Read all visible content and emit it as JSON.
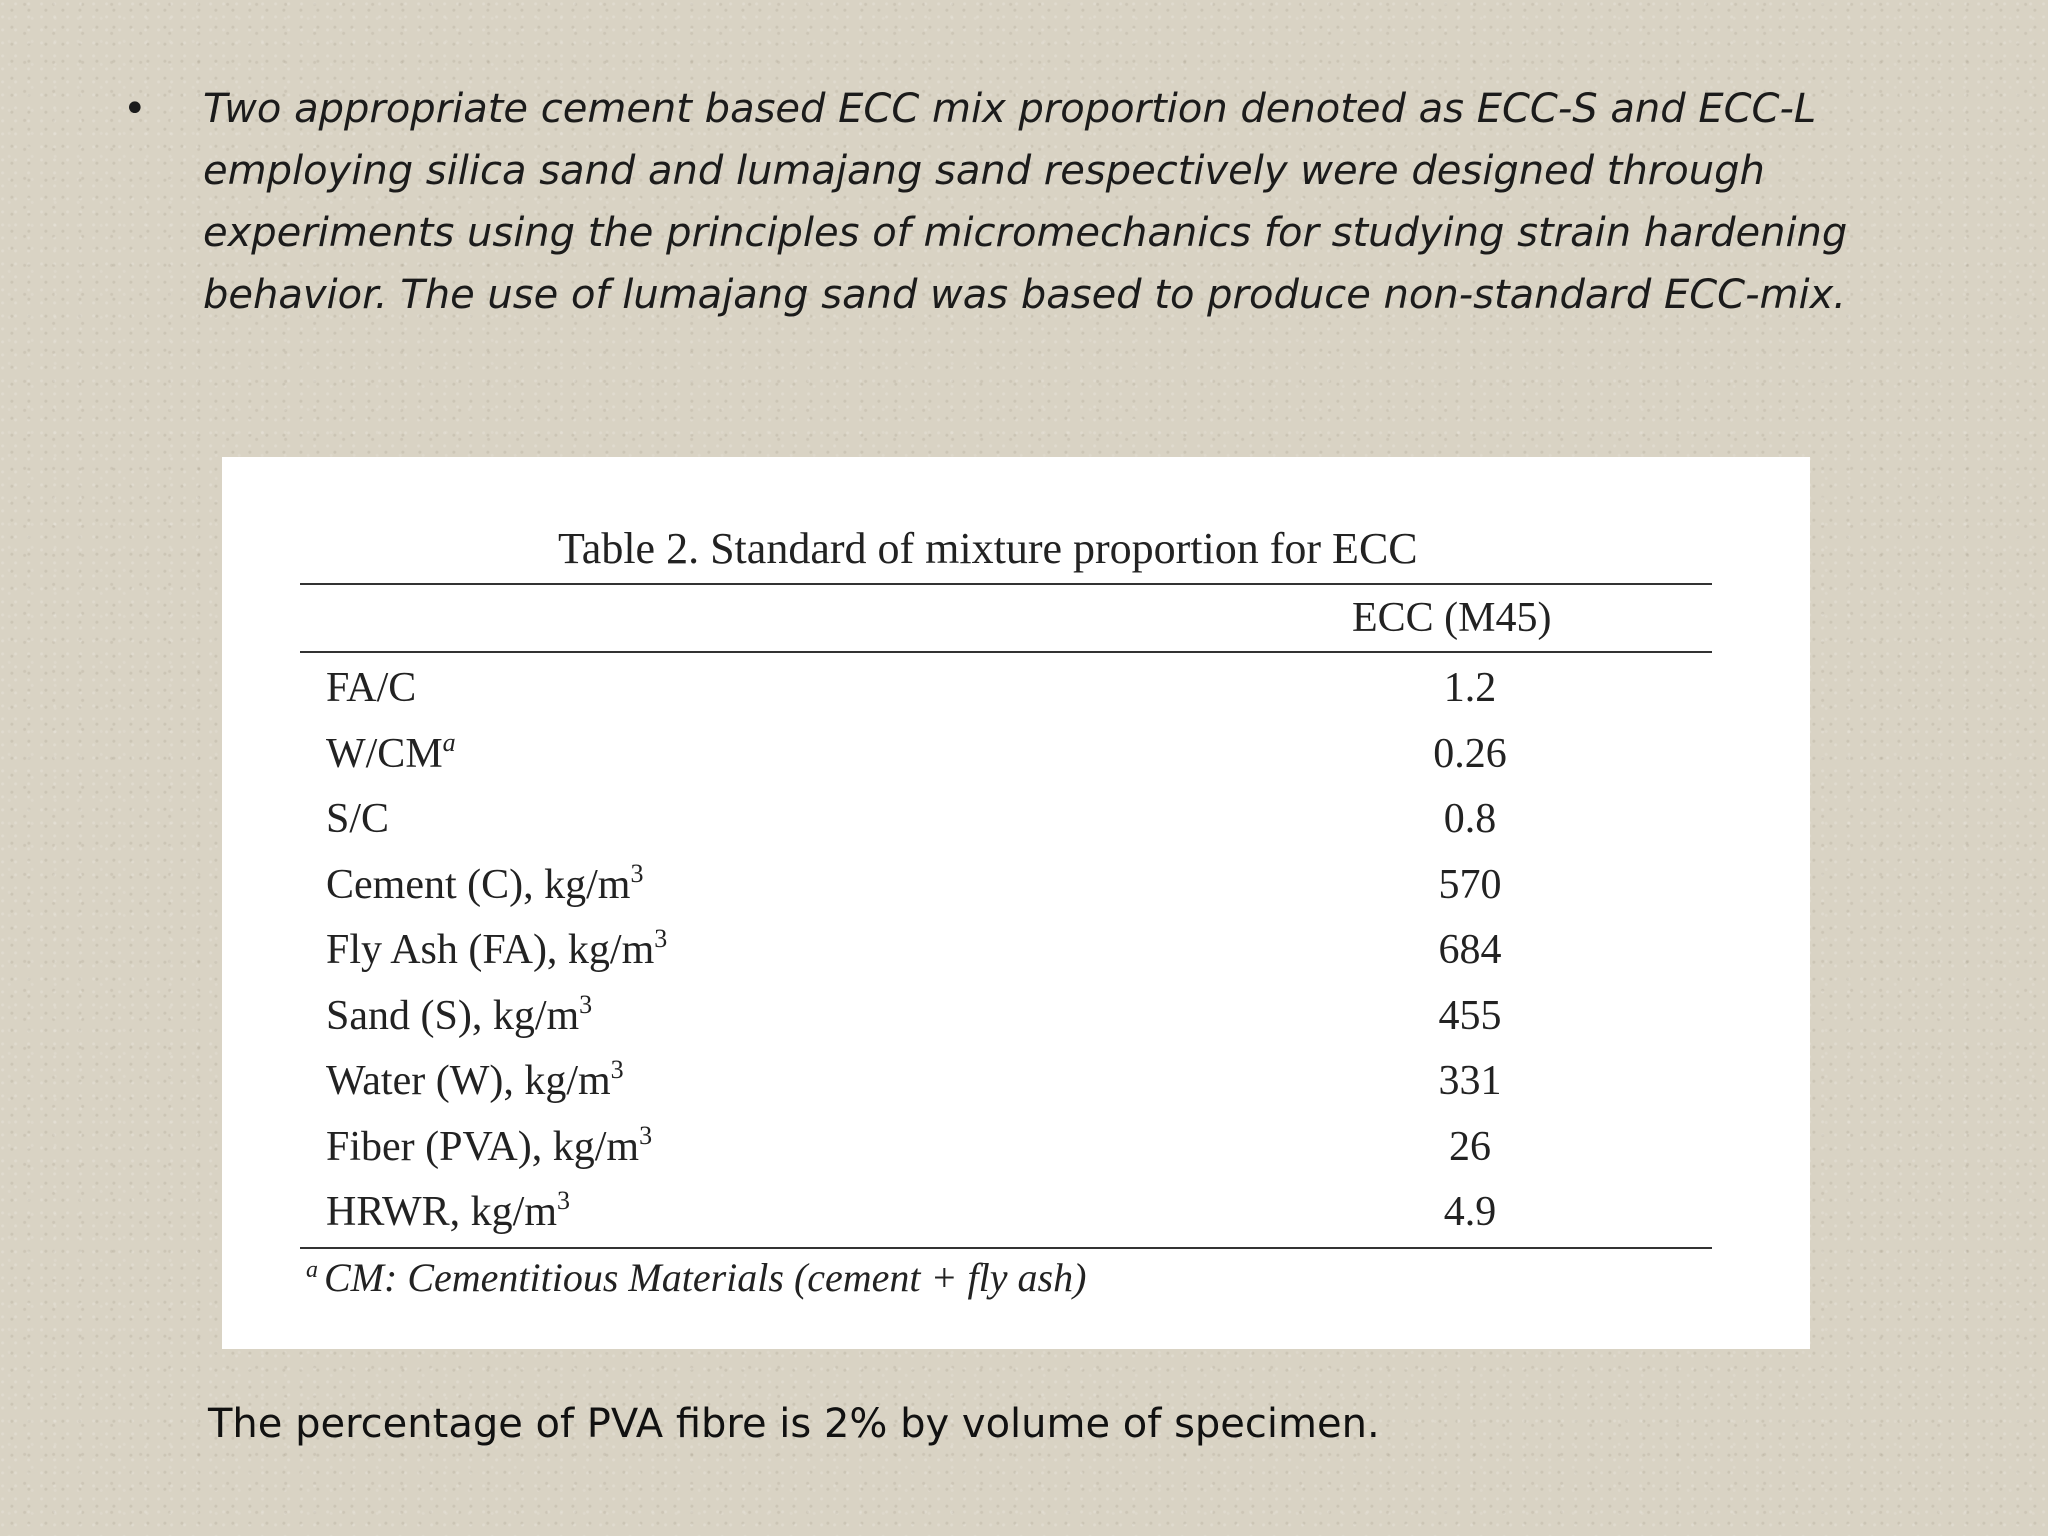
{
  "bullet": {
    "symbol": "•",
    "text": "Two appropriate cement based ECC mix proportion denoted as ECC-S and ECC-L\nemploying silica sand and lumajang sand respectively were designed through\nexperiments using the principles of micromechanics for studying strain hardening\nbehavior. The use of lumajang sand was based to produce non-standard ECC-mix."
  },
  "table": {
    "caption": "Table 2. Standard of mixture proportion for ECC",
    "column_header": "ECC (M45)",
    "rows": [
      {
        "label": "FA/C",
        "sup": "",
        "value": "1.2"
      },
      {
        "label": "W/CM",
        "sup": "a",
        "value": "0.26"
      },
      {
        "label": "S/C",
        "sup": "",
        "value": "0.8"
      },
      {
        "label": "Cement (C), kg/m",
        "sup": "3",
        "value": "570"
      },
      {
        "label": "Fly Ash (FA), kg/m",
        "sup": "3",
        "value": "684"
      },
      {
        "label": "Sand (S), kg/m",
        "sup": "3",
        "value": "455"
      },
      {
        "label": "Water (W), kg/m",
        "sup": "3",
        "value": "331"
      },
      {
        "label": "Fiber (PVA), kg/m",
        "sup": "3",
        "value": "26"
      },
      {
        "label": "HRWR, kg/m",
        "sup": "3",
        "value": "4.9"
      }
    ],
    "note_mark": "a",
    "note": "CM: Cementitious Materials (cement + fly ash)"
  },
  "footer": "The percentage of PVA fibre is 2% by volume of specimen."
}
